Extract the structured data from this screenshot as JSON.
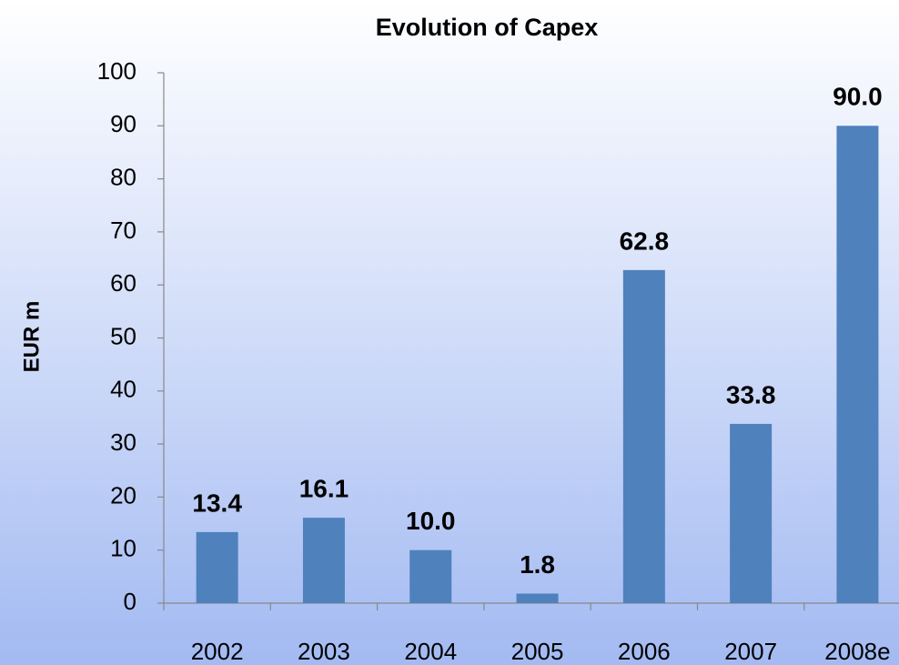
{
  "chart_data": {
    "type": "bar",
    "title": "Evolution of Capex",
    "y_label": "EUR m",
    "categories": [
      "2002",
      "2003",
      "2004",
      "2005",
      "2006",
      "2007",
      "2008e"
    ],
    "values": [
      13.4,
      16.1,
      10.0,
      1.8,
      62.8,
      33.8,
      90.0
    ],
    "value_labels": [
      "13.4",
      "16.1",
      "10.0",
      "1.8",
      "62.8",
      "33.8",
      "90.0"
    ],
    "color": "#4f81bd",
    "ylim": [
      0,
      100
    ],
    "yticks": [
      0,
      10,
      20,
      30,
      40,
      50,
      60,
      70,
      80,
      90,
      100
    ],
    "grid": false
  }
}
